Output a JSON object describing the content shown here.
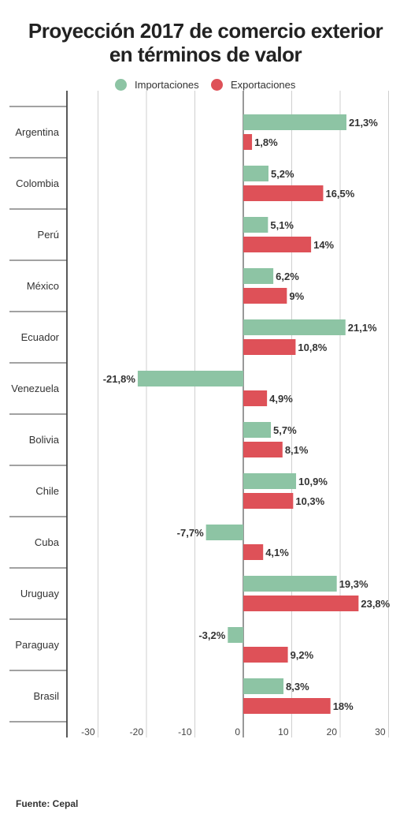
{
  "chart_data": {
    "type": "bar",
    "orientation": "horizontal",
    "title_line1": "Proyección 2017 de comercio exterior",
    "title_line2": "en términos de valor",
    "categories": [
      "Argentina",
      "Colombia",
      "Perú",
      "México",
      "Ecuador",
      "Venezuela",
      "Bolivia",
      "Chile",
      "Cuba",
      "Uruguay",
      "Paraguay",
      "Brasil"
    ],
    "series": [
      {
        "name": "Importaciones",
        "color": "#8dc4a4",
        "values": [
          21.3,
          5.2,
          5.1,
          6.2,
          21.1,
          -21.8,
          5.7,
          10.9,
          -7.7,
          19.3,
          -3.2,
          8.3
        ],
        "labels": [
          "21,3%",
          "5,2%",
          "5,1%",
          "6,2%",
          "21,1%",
          "-21,8%",
          "5,7%",
          "10,9%",
          "-7,7%",
          "19,3%",
          "-3,2%",
          "8,3%"
        ]
      },
      {
        "name": "Exportaciones",
        "color": "#de5158",
        "values": [
          1.8,
          16.5,
          14,
          9,
          10.8,
          4.9,
          8.1,
          10.3,
          4.1,
          23.8,
          9.2,
          18
        ],
        "labels": [
          "1,8%",
          "16,5%",
          "14%",
          "9%",
          "10,8%",
          "4,9%",
          "8,1%",
          "10,3%",
          "4,1%",
          "23,8%",
          "9,2%",
          "18%"
        ]
      }
    ],
    "xlim": [
      -30,
      30
    ],
    "xticks": [
      -30,
      -20,
      -10,
      0,
      10,
      20,
      30
    ],
    "xtick_labels": [
      "-30",
      "-20",
      "-10",
      "0",
      "10",
      "20",
      "30"
    ],
    "grid": true,
    "legend_position": "top-center",
    "source": "Fuente: Cepal"
  }
}
